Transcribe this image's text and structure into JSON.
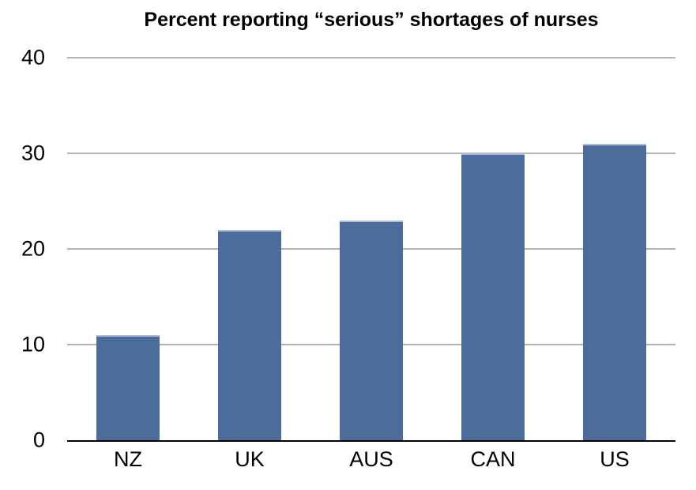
{
  "chart_data": {
    "type": "bar",
    "title": "Percent reporting “serious” shortages of nurses",
    "categories": [
      "NZ",
      "UK",
      "AUS",
      "CAN",
      "US"
    ],
    "values": [
      11,
      22,
      23,
      30,
      31
    ],
    "xlabel": "",
    "ylabel": "",
    "ylim": [
      0,
      40
    ],
    "yticks": [
      0,
      10,
      20,
      30,
      40
    ],
    "grid": true,
    "legend": false,
    "colors": {
      "bar": "#4c6d9b",
      "bar_top_edge": "#aebdd6",
      "gridline": "#b3b3b3",
      "axis_line": "#000000",
      "text": "#000000",
      "background": "#ffffff"
    }
  }
}
